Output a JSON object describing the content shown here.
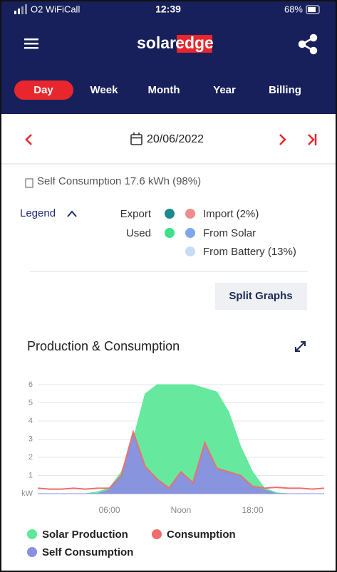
{
  "status_bar": {
    "carrier": "O2 WiFiCall",
    "time": "12:39",
    "battery": "68%"
  },
  "header": {
    "logo_left": "solar",
    "logo_right": "edge"
  },
  "tabs": [
    "Day",
    "Week",
    "Month",
    "Year",
    "Billing"
  ],
  "date": "20/06/2022",
  "summary": "Self Consumption 17.6 kWh (98%)",
  "legend": {
    "title": "Legend",
    "row_labels": [
      "Export",
      "Used"
    ],
    "items": [
      "Import (2%)",
      "From Solar",
      "From Battery (13%)"
    ]
  },
  "button": "Split Graphs",
  "chart_data": {
    "type": "area",
    "title": "Production & Consumption",
    "x": [
      0,
      1,
      2,
      3,
      4,
      5,
      6,
      7,
      8,
      9,
      10,
      11,
      12,
      13,
      14,
      15,
      16,
      17,
      18,
      19,
      20,
      21,
      22,
      23,
      24
    ],
    "xlim": [
      0,
      24
    ],
    "xticks": [
      {
        "value": 6,
        "label": "06:00"
      },
      {
        "value": 12,
        "label": "Noon"
      },
      {
        "value": 18,
        "label": "18:00"
      }
    ],
    "ylim": [
      0,
      6
    ],
    "yticks": [
      {
        "value": 0,
        "label": "kW"
      },
      1,
      2,
      3,
      4,
      5,
      6
    ],
    "grid": true,
    "series": [
      {
        "name": "Solar Production",
        "color": "#5ee89a",
        "values": [
          0,
          0,
          0,
          0,
          0,
          0.1,
          0.3,
          1.2,
          3,
          5.5,
          6,
          6,
          6,
          6,
          5.8,
          5.6,
          4.5,
          2.6,
          1.2,
          0.3,
          0.05,
          0,
          0,
          0,
          0
        ]
      },
      {
        "name": "Consumption",
        "color": "#f06d6d",
        "values": [
          0.3,
          0.25,
          0.25,
          0.3,
          0.25,
          0.3,
          0.3,
          1,
          3.4,
          1.5,
          0.8,
          0.3,
          1.2,
          0.6,
          2.8,
          1.4,
          1.2,
          1,
          0.4,
          0.3,
          0.35,
          0.3,
          0.3,
          0.25,
          0.3
        ]
      },
      {
        "name": "Self Consumption",
        "color": "#8a8fe0",
        "values": [
          0,
          0,
          0,
          0,
          0,
          0,
          0.2,
          1,
          3.4,
          1.5,
          0.8,
          0.3,
          1.2,
          0.6,
          2.8,
          1.4,
          1.2,
          1,
          0.4,
          0.2,
          0,
          0,
          0,
          0,
          0
        ]
      }
    ]
  }
}
